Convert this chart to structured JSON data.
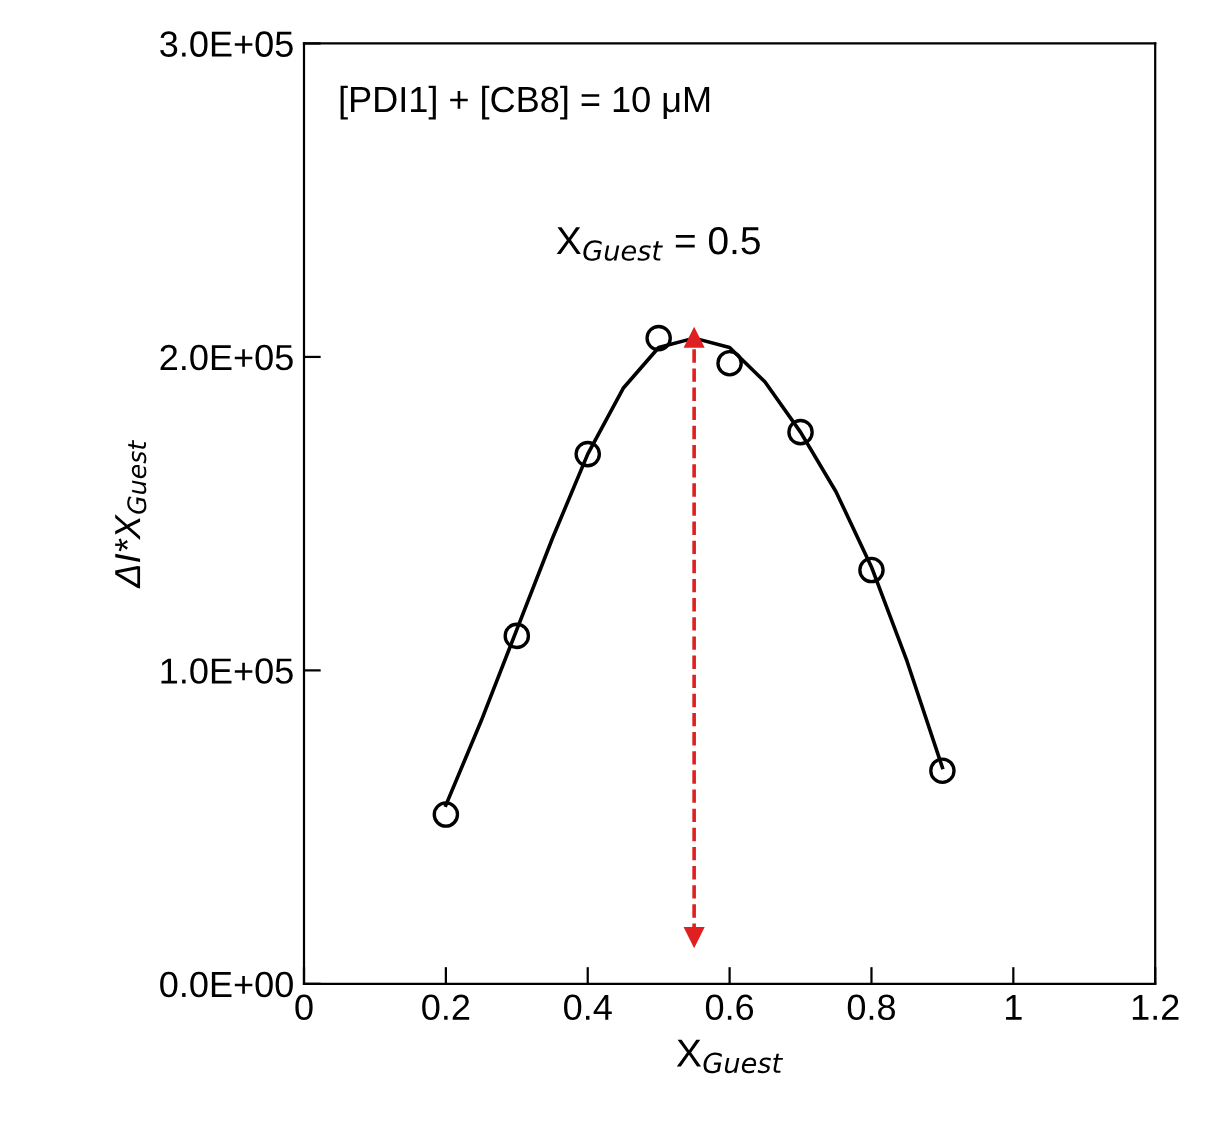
{
  "chart_data": {
    "type": "scatter",
    "xlabel": "X$_{Guest}$",
    "ylabel": "ΔI*X$_{Guest}$",
    "xlim": [
      0,
      1.2
    ],
    "xticks": [
      0,
      0.2,
      0.4,
      0.6,
      0.8,
      1,
      1.2
    ],
    "ylim": [
      0,
      300000
    ],
    "yticks": [
      {
        "value": 0,
        "label": "0.0E+00"
      },
      {
        "value": 100000,
        "label": "1.0E+05"
      },
      {
        "value": 200000,
        "label": "2.0E+05"
      },
      {
        "value": 300000,
        "label": "3.0E+05"
      }
    ],
    "grid": false,
    "series": [
      {
        "marker": "circle",
        "color": "#000000",
        "x": [
          0.2,
          0.3,
          0.4,
          0.5,
          0.6,
          0.7,
          0.8,
          0.9
        ],
        "values": [
          54000,
          111000,
          169000,
          206000,
          198000,
          176000,
          132000,
          68000
        ]
      },
      {
        "type": "line",
        "marker": "none",
        "line_style": "solid",
        "color": "#000000",
        "x": [
          0.2,
          0.25,
          0.3,
          0.35,
          0.4,
          0.45,
          0.5,
          0.55,
          0.6,
          0.65,
          0.7,
          0.75,
          0.8,
          0.85,
          0.9
        ],
        "values": [
          57000,
          84000,
          113000,
          142000,
          169000,
          190000,
          203000,
          206000,
          203000,
          192000,
          176000,
          157000,
          133000,
          103000,
          69000
        ]
      },
      {
        "type": "line",
        "marker": "triangle",
        "line_style": "dashed",
        "color": "#e02020",
        "x": [
          0.55,
          0.55
        ],
        "values": [
          15000,
          206000
        ]
      }
    ],
    "annotations": [
      "[PDI1] + [CB8] = 10 μM",
      {
        "text": "X$_{Guest}$ = 0.5",
        "x": 0.55,
        "y": 206000
      }
    ]
  }
}
